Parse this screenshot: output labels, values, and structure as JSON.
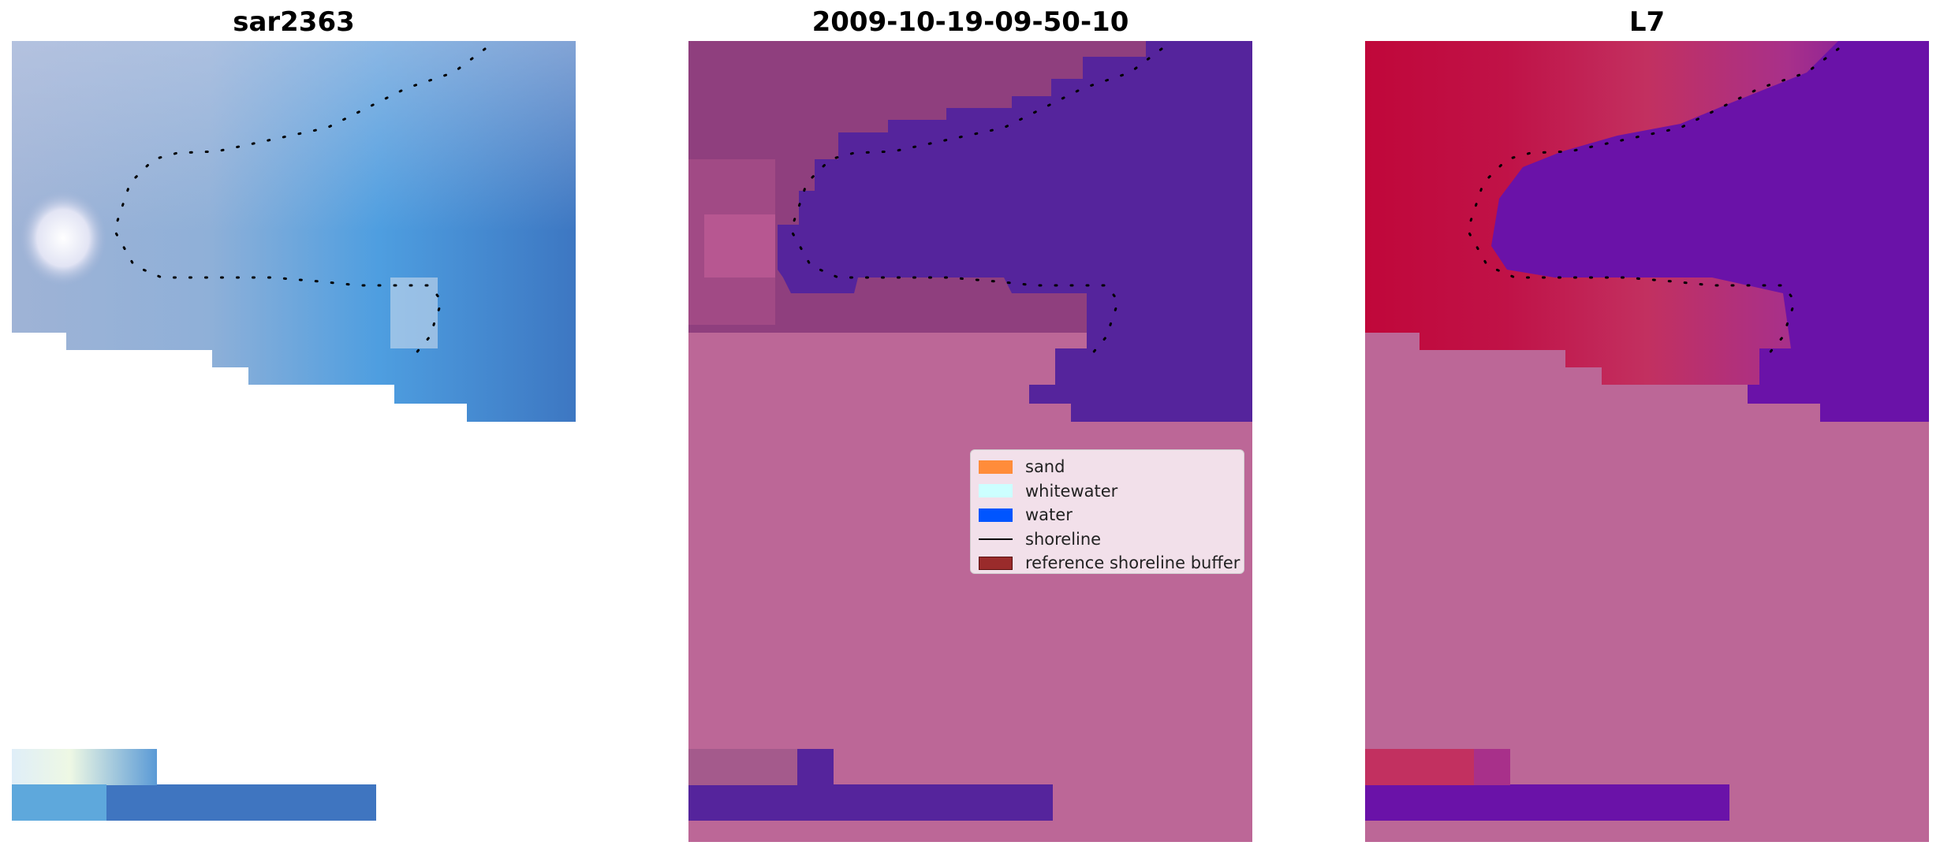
{
  "panels": [
    {
      "title": "sar2363"
    },
    {
      "title": "2009-10-19-09-50-10"
    },
    {
      "title": "L7"
    }
  ],
  "legend": {
    "items": [
      {
        "label": "sand",
        "color": "#ff8c3a"
      },
      {
        "label": "whitewater",
        "color": "#ccffff"
      },
      {
        "label": "water",
        "color": "#0055ff"
      },
      {
        "label": "shoreline",
        "color": "#000000"
      },
      {
        "label": "reference shoreline buffer",
        "color": "#9a2b2b"
      }
    ]
  },
  "colors": {
    "background": "#ffffff",
    "masked_pink": "#bc6797",
    "classified_water_purple": "#55249c",
    "sar_blue": "#3f7bc4",
    "index_red": "#c0073a",
    "index_purple": "#6a12a8"
  }
}
